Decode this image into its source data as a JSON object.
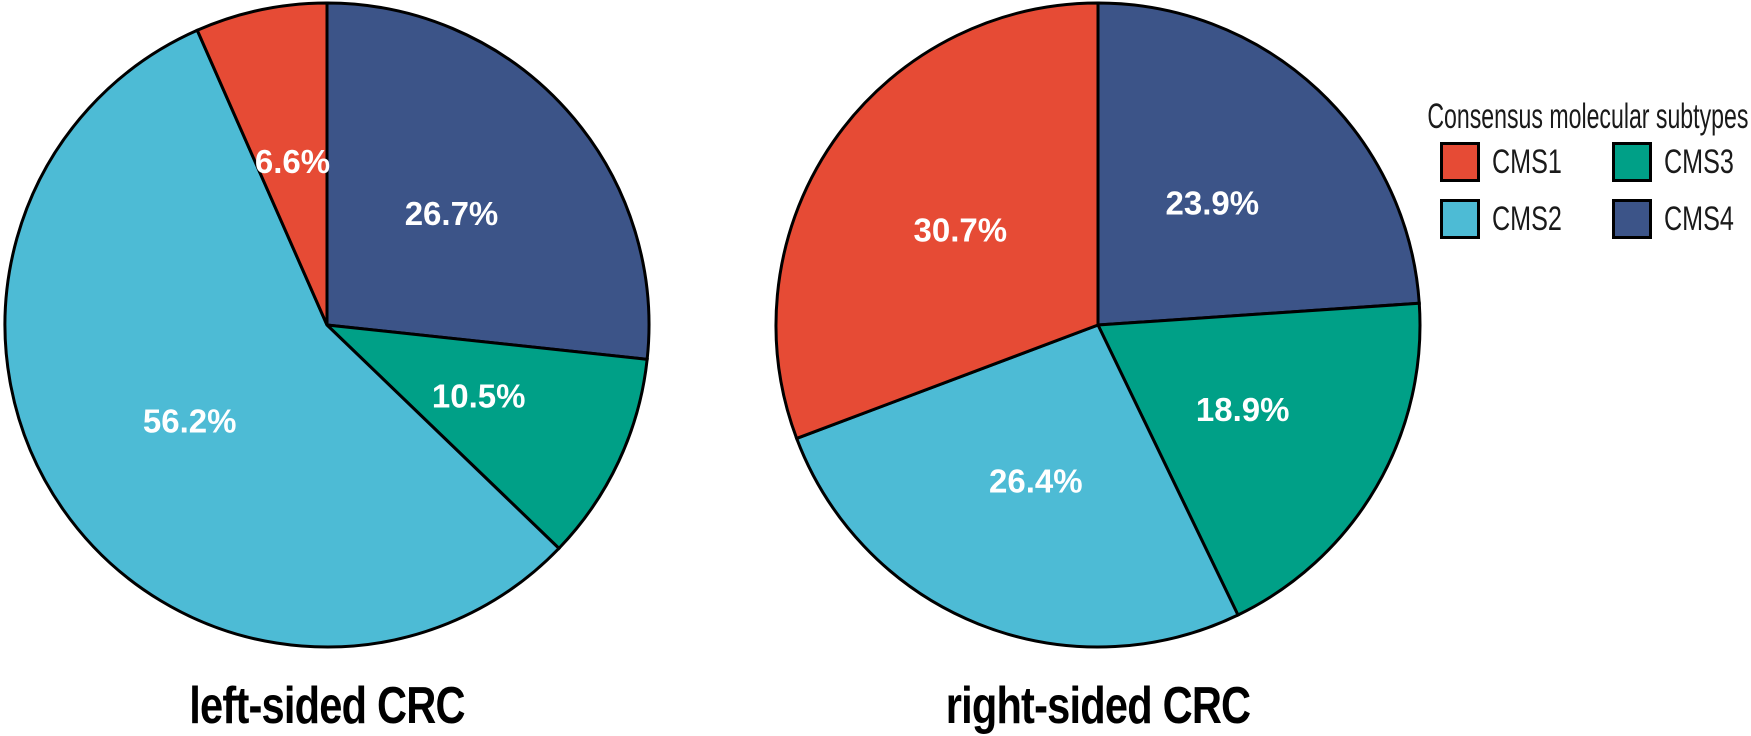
{
  "figure": {
    "background": "#ffffff",
    "slice_border_color": "#000000",
    "slice_label_color": "#ffffff"
  },
  "legend": {
    "title": "Consensus molecular subtypes",
    "position": "top-right",
    "items": [
      {
        "label": "CMS1",
        "color": "#E64B35"
      },
      {
        "label": "CMS2",
        "color": "#4DBBD5"
      },
      {
        "label": "CMS3",
        "color": "#00A087"
      },
      {
        "label": "CMS4",
        "color": "#3C5488"
      }
    ]
  },
  "chart_data": [
    {
      "type": "pie",
      "title": "left-sided CRC",
      "start_angle_deg": 0,
      "direction": "clockwise",
      "slices": [
        {
          "category": "CMS4",
          "value": 26.7,
          "label": "26.7%",
          "color": "#3C5488"
        },
        {
          "category": "CMS3",
          "value": 10.5,
          "label": "10.5%",
          "color": "#00A087"
        },
        {
          "category": "CMS2",
          "value": 56.2,
          "label": "56.2%",
          "color": "#4DBBD5"
        },
        {
          "category": "CMS1",
          "value": 6.6,
          "label": "6.6%",
          "color": "#E64B35"
        }
      ]
    },
    {
      "type": "pie",
      "title": "right-sided CRC",
      "start_angle_deg": 0,
      "direction": "clockwise",
      "slices": [
        {
          "category": "CMS4",
          "value": 23.9,
          "label": "23.9%",
          "color": "#3C5488"
        },
        {
          "category": "CMS3",
          "value": 18.9,
          "label": "18.9%",
          "color": "#00A087"
        },
        {
          "category": "CMS2",
          "value": 26.4,
          "label": "26.4%",
          "color": "#4DBBD5"
        },
        {
          "category": "CMS1",
          "value": 30.7,
          "label": "30.7%",
          "color": "#E64B35"
        }
      ]
    }
  ]
}
